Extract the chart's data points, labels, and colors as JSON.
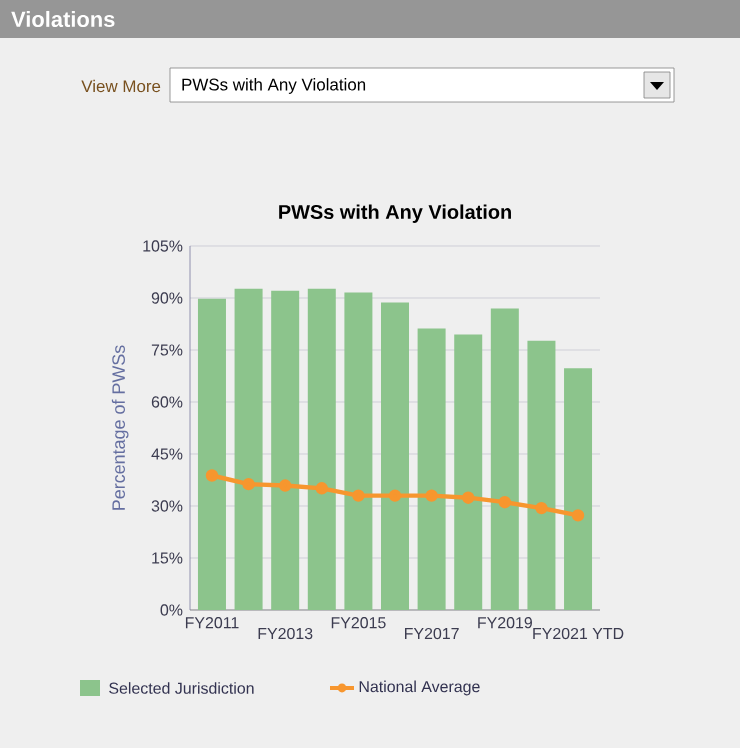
{
  "chart_data": {
    "type": "bar",
    "title": "PWSs with Any Violation",
    "ylabel": "Percentage of PWSs",
    "annotations": [
      "Violations",
      "View More",
      "PWSs with Any Violation"
    ],
    "categories": [
      "FY2011",
      null,
      "FY2013",
      null,
      "FY2015",
      null,
      "FY2017",
      null,
      "FY2019",
      null,
      "FY2021 YTD"
    ],
    "series": [
      {
        "name": "Selected Jurisdiction",
        "color": "#8cc48c",
        "values": [
          89.8,
          92.7,
          92.1,
          92.7,
          91.6,
          88.7,
          81.2,
          79.5,
          87.0,
          77.7,
          69.7
        ]
      },
      {
        "name": "National Average",
        "type": "line",
        "color": "#f7962e",
        "values": [
          38.8,
          36.3,
          35.9,
          35.1,
          33.0,
          33.0,
          33.0,
          32.4,
          31.1,
          29.4,
          27.3
        ]
      }
    ],
    "ylim": [
      0,
      105
    ],
    "yticks": [
      {
        "value": 0,
        "label": "0%"
      },
      {
        "value": 15,
        "label": "15%"
      },
      {
        "value": 30,
        "label": "30%"
      },
      {
        "value": 45,
        "label": "45%"
      },
      {
        "value": 60,
        "label": "60%"
      },
      {
        "value": 75,
        "label": "75%"
      },
      {
        "value": 90,
        "label": "90%"
      },
      {
        "value": 105,
        "label": "105%"
      }
    ],
    "grid": "y",
    "legend": "bottom",
    "marker": "circle"
  }
}
